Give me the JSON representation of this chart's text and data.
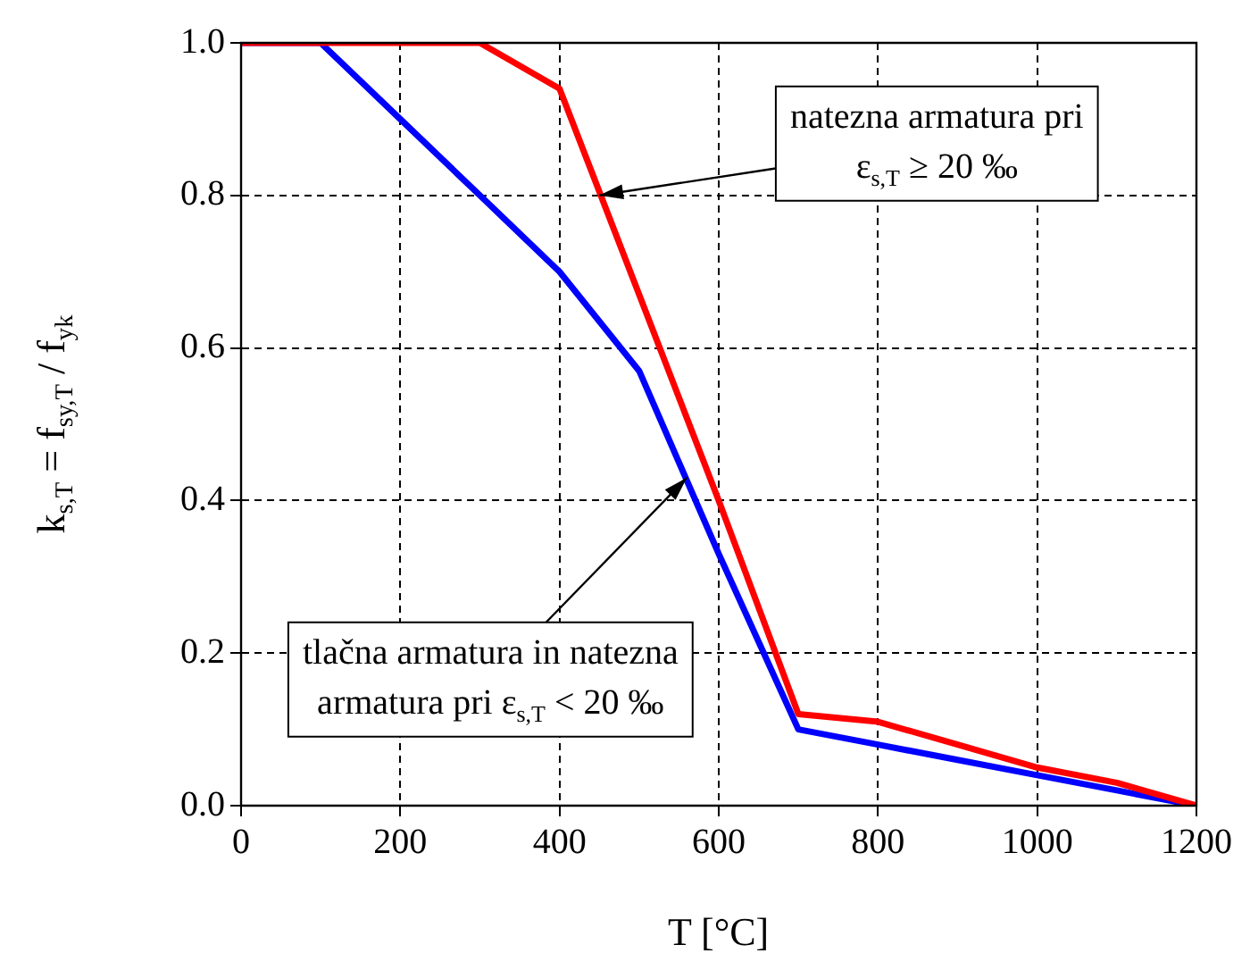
{
  "chart_data": {
    "type": "line",
    "xlabel": "T [°C]",
    "ylabel": "k$_{s,T}$ = f$_{sy,T}$ / f$_{yk}$",
    "x": [
      0,
      100,
      200,
      300,
      400,
      500,
      600,
      700,
      800,
      900,
      1000,
      1100,
      1200
    ],
    "series": [
      {
        "color": "#ff0000",
        "values": [
          1,
          1,
          1,
          1,
          0.94,
          0.67,
          0.4,
          0.12,
          0.11,
          0.08,
          0.05,
          0.03,
          0
        ]
      },
      {
        "color": "#0000ff",
        "values": [
          1,
          1,
          0.9,
          0.8,
          0.7,
          0.57,
          0.33,
          0.1,
          0.08,
          0.06,
          0.04,
          0.02,
          0
        ]
      }
    ],
    "xlim": [
      0,
      1200
    ],
    "xticks": [
      0,
      200,
      400,
      600,
      800,
      1000,
      1200
    ],
    "ylim": [
      0,
      1
    ],
    "yticks": [
      {
        "value": 0,
        "label": "0.0"
      },
      {
        "value": 0.2,
        "label": "0.2"
      },
      {
        "value": 0.4,
        "label": "0.4"
      },
      {
        "value": 0.6,
        "label": "0.6"
      },
      {
        "value": 0.8,
        "label": "0.8"
      },
      {
        "value": 1,
        "label": "1.0"
      }
    ],
    "grid": true,
    "legend": false,
    "marker": "none",
    "line_style": "solid",
    "annotations": [
      {
        "text": "natezna armatura pri\nε$_{s,T}$ ≥ 20 ‰",
        "x": 450,
        "y": 0.8
      },
      {
        "text": "tlačna armatura in natezna\narmatura pri ε$_{s,T}$ < 20 ‰",
        "x": 560,
        "y": 0.43
      }
    ]
  }
}
